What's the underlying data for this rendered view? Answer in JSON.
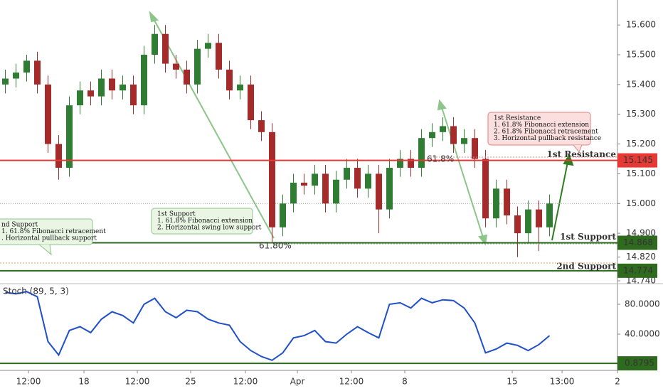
{
  "chart_data": [
    {
      "type": "candlestick",
      "open": [
        15.4,
        15.42,
        15.44,
        15.48,
        15.4,
        15.2,
        15.12,
        15.33,
        15.38,
        15.36,
        15.42,
        15.38,
        15.4,
        15.33,
        15.5,
        15.57,
        15.47,
        15.45,
        15.4,
        15.52,
        15.54,
        15.45,
        15.38,
        15.4,
        15.28,
        15.24,
        14.92,
        15.0,
        15.07,
        15.06,
        15.1,
        15.0,
        15.08,
        15.12,
        15.05,
        15.1,
        14.98,
        15.12,
        15.15,
        15.12,
        15.22,
        15.24,
        15.26,
        15.2,
        15.22,
        15.15,
        14.95,
        15.05,
        14.96,
        14.9,
        14.98,
        14.92
      ],
      "high": [
        15.45,
        15.47,
        15.5,
        15.51,
        15.43,
        15.23,
        15.36,
        15.41,
        15.41,
        15.45,
        15.45,
        15.43,
        15.43,
        15.53,
        15.6,
        15.6,
        15.5,
        15.48,
        15.55,
        15.57,
        15.57,
        15.48,
        15.43,
        15.43,
        15.31,
        15.27,
        15.03,
        15.1,
        15.1,
        15.13,
        15.13,
        15.11,
        15.15,
        15.15,
        15.13,
        15.13,
        15.15,
        15.18,
        15.18,
        15.25,
        15.27,
        15.29,
        15.29,
        15.25,
        15.25,
        15.18,
        15.08,
        15.08,
        14.99,
        15.01,
        15.01,
        15.03
      ],
      "low": [
        15.37,
        15.39,
        15.41,
        15.37,
        15.17,
        15.08,
        15.09,
        15.3,
        15.33,
        15.33,
        15.35,
        15.35,
        15.3,
        15.3,
        15.47,
        15.44,
        15.42,
        15.37,
        15.37,
        15.49,
        15.42,
        15.35,
        15.35,
        15.25,
        15.21,
        14.87,
        14.89,
        14.97,
        15.03,
        15.03,
        14.97,
        14.97,
        15.05,
        15.02,
        15.02,
        14.9,
        14.95,
        15.09,
        15.09,
        15.09,
        15.19,
        15.21,
        15.17,
        15.17,
        15.12,
        14.92,
        14.92,
        14.93,
        14.82,
        14.87,
        14.84,
        14.89
      ],
      "close": [
        15.42,
        15.44,
        15.48,
        15.4,
        15.2,
        15.12,
        15.33,
        15.38,
        15.36,
        15.42,
        15.38,
        15.4,
        15.33,
        15.5,
        15.57,
        15.47,
        15.45,
        15.4,
        15.52,
        15.54,
        15.45,
        15.38,
        15.4,
        15.28,
        15.24,
        14.92,
        15.0,
        15.07,
        15.06,
        15.1,
        15.0,
        15.08,
        15.12,
        15.05,
        15.1,
        14.98,
        15.12,
        15.15,
        15.12,
        15.22,
        15.24,
        15.26,
        15.2,
        15.22,
        15.15,
        14.95,
        15.05,
        14.96,
        14.9,
        14.98,
        14.92,
        15.0
      ],
      "up_color": "#2f7d32",
      "down_color": "#a52a2a",
      "xlim": [
        0,
        62.13
      ],
      "xticks": [
        {
          "value": 2.67,
          "label": "12:00"
        },
        {
          "value": 7.87,
          "label": "18"
        },
        {
          "value": 12.87,
          "label": "12:00"
        },
        {
          "value": 17.87,
          "label": "25"
        },
        {
          "value": 23,
          "label": "12:00"
        },
        {
          "value": 27.87,
          "label": "Apr"
        },
        {
          "value": 32.93,
          "label": "12:00"
        },
        {
          "value": 37.93,
          "label": "8"
        },
        {
          "value": 48,
          "label": "15"
        },
        {
          "value": 52.67,
          "label": "13:00"
        },
        {
          "value": 57.87,
          "label": "2"
        }
      ],
      "ylim": [
        14.733,
        15.684
      ],
      "yticks": [
        {
          "value": 15.6,
          "label": "15.600"
        },
        {
          "value": 15.5,
          "label": "15.500"
        },
        {
          "value": 15.4,
          "label": "15.400"
        },
        {
          "value": 15.3,
          "label": "15.300"
        },
        {
          "value": 15.2,
          "label": "15.200"
        },
        {
          "value": 15.1,
          "label": "15.100"
        },
        {
          "value": 15,
          "label": "15.000"
        },
        {
          "value": 14.9,
          "label": "14.900"
        },
        {
          "value": 14.82,
          "label": "14.820"
        },
        {
          "value": 14.74,
          "label": "14.740"
        }
      ],
      "levels": [
        {
          "name": "1st Resistance",
          "value": 15.145,
          "color": "#e53935"
        },
        {
          "name": "1st Support",
          "value": 14.868,
          "color": "#2e6b1f"
        },
        {
          "name": "2nd Support",
          "value": 14.774,
          "color": "#2e6b1f"
        }
      ],
      "fib_labels": [
        "61.80%",
        "61.8%"
      ],
      "annotations": [
        {
          "lines": [
            "nd Support",
            "1. 61.8% Fibonacci retracement",
            ". Horizontal pullback support"
          ]
        },
        {
          "lines": [
            "1st Support",
            "1.  61.8% Fibonacci extension",
            "2.  Horizontal swing low support"
          ]
        },
        {
          "lines": [
            "1st Resistance",
            "1. 61.8% Fibonacci extension",
            "2. 61.8% Fibonacci retracement",
            "3. Horizontal pullback resistance"
          ]
        }
      ]
    },
    {
      "type": "line",
      "title": "Stoch (89, 5, 3)",
      "color": "#1f4fc9",
      "values": [
        96,
        94,
        97,
        90,
        30,
        12,
        45,
        50,
        42,
        60,
        70,
        65,
        55,
        80,
        88,
        70,
        62,
        72,
        70,
        60,
        55,
        52,
        30,
        18,
        10,
        5,
        15,
        35,
        38,
        45,
        30,
        28,
        40,
        50,
        42,
        35,
        80,
        82,
        75,
        88,
        82,
        86,
        85,
        75,
        55,
        15,
        20,
        28,
        25,
        18,
        26,
        38
      ],
      "ylim": [
        -7.6,
        106.7
      ],
      "yticks": [
        {
          "value": 80,
          "label": "80.0000"
        },
        {
          "value": 40,
          "label": "40.0000"
        }
      ],
      "level": 0.8795,
      "level_color": "#2e6b1f"
    }
  ]
}
